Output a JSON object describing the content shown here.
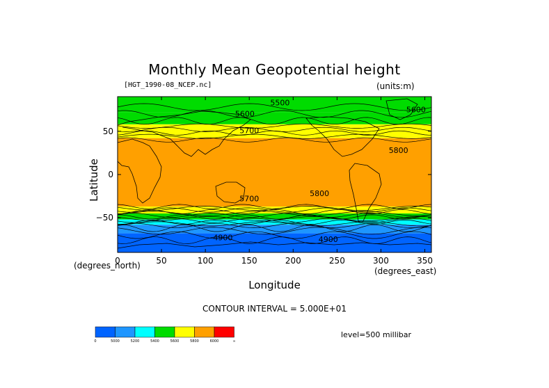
{
  "chart_data": {
    "type": "heatmap",
    "title": "Monthly Mean Geopotential height",
    "file_label": "[HGT_1990-08_NCEP.nc]",
    "units_label": "(units:m)",
    "xlabel": "Longitude",
    "ylabel": "Latitude",
    "x_units": "(degrees_east)",
    "y_units": "(degrees_north)",
    "xlim": [
      0,
      357.5
    ],
    "ylim": [
      -90,
      90
    ],
    "x_ticks": [
      0,
      50,
      100,
      150,
      200,
      250,
      300,
      350
    ],
    "y_ticks": [
      50,
      0,
      -50
    ],
    "x_tick_labels": [
      "0",
      "50",
      "100",
      "150",
      "200",
      "250",
      "300",
      "350"
    ],
    "y_tick_labels": [
      "50",
      "0",
      "−50"
    ],
    "contour_interval_text": "CONTOUR INTERVAL = 5.000E+01",
    "level_text": "level=500 millibar",
    "colorbar": {
      "colors": [
        "#0064ff",
        "#1e96ff",
        "#00ffff",
        "#00dc00",
        "#ffff00",
        "#ffa000",
        "#ff0000"
      ],
      "labels": [
        "0",
        "5000",
        "5200",
        "5400",
        "5600",
        "5800",
        "6000",
        "∞"
      ],
      "bounds": [
        0,
        5000,
        5200,
        5400,
        5600,
        5800,
        6000
      ]
    },
    "zonal_bands": [
      {
        "lat": [
          90,
          72
        ],
        "color": "#00dc00",
        "range": "5400-5600"
      },
      {
        "lat": [
          72,
          58
        ],
        "color": "#00dc00",
        "range": "5400-5600"
      },
      {
        "lat": [
          58,
          42
        ],
        "color": "#ffff00",
        "range": "5600-5800"
      },
      {
        "lat": [
          42,
          -37
        ],
        "color": "#ffa000",
        "range": "5800-6000"
      },
      {
        "lat": [
          -37,
          -45
        ],
        "color": "#ffff00",
        "range": "5600-5800"
      },
      {
        "lat": [
          -45,
          -52
        ],
        "color": "#00dc00",
        "range": "5400-5600"
      },
      {
        "lat": [
          -52,
          -58
        ],
        "color": "#00ffff",
        "range": "5200-5400"
      },
      {
        "lat": [
          -58,
          -68
        ],
        "color": "#1e96ff",
        "range": "5000-5200"
      },
      {
        "lat": [
          -68,
          -90
        ],
        "color": "#0064ff",
        "range": "0-5000"
      }
    ],
    "contour_labels": [
      {
        "text": "5500",
        "lon": 185,
        "lat": 80
      },
      {
        "text": "5600",
        "lon": 145,
        "lat": 67
      },
      {
        "text": "5600",
        "lon": 340,
        "lat": 72
      },
      {
        "text": "5700",
        "lon": 150,
        "lat": 48
      },
      {
        "text": "5800",
        "lon": 320,
        "lat": 25
      },
      {
        "text": "5800",
        "lon": 230,
        "lat": -25
      },
      {
        "text": "5700",
        "lon": 150,
        "lat": -31
      },
      {
        "text": "4900",
        "lon": 120,
        "lat": -76
      },
      {
        "text": "4900",
        "lon": 240,
        "lat": -78
      }
    ]
  }
}
